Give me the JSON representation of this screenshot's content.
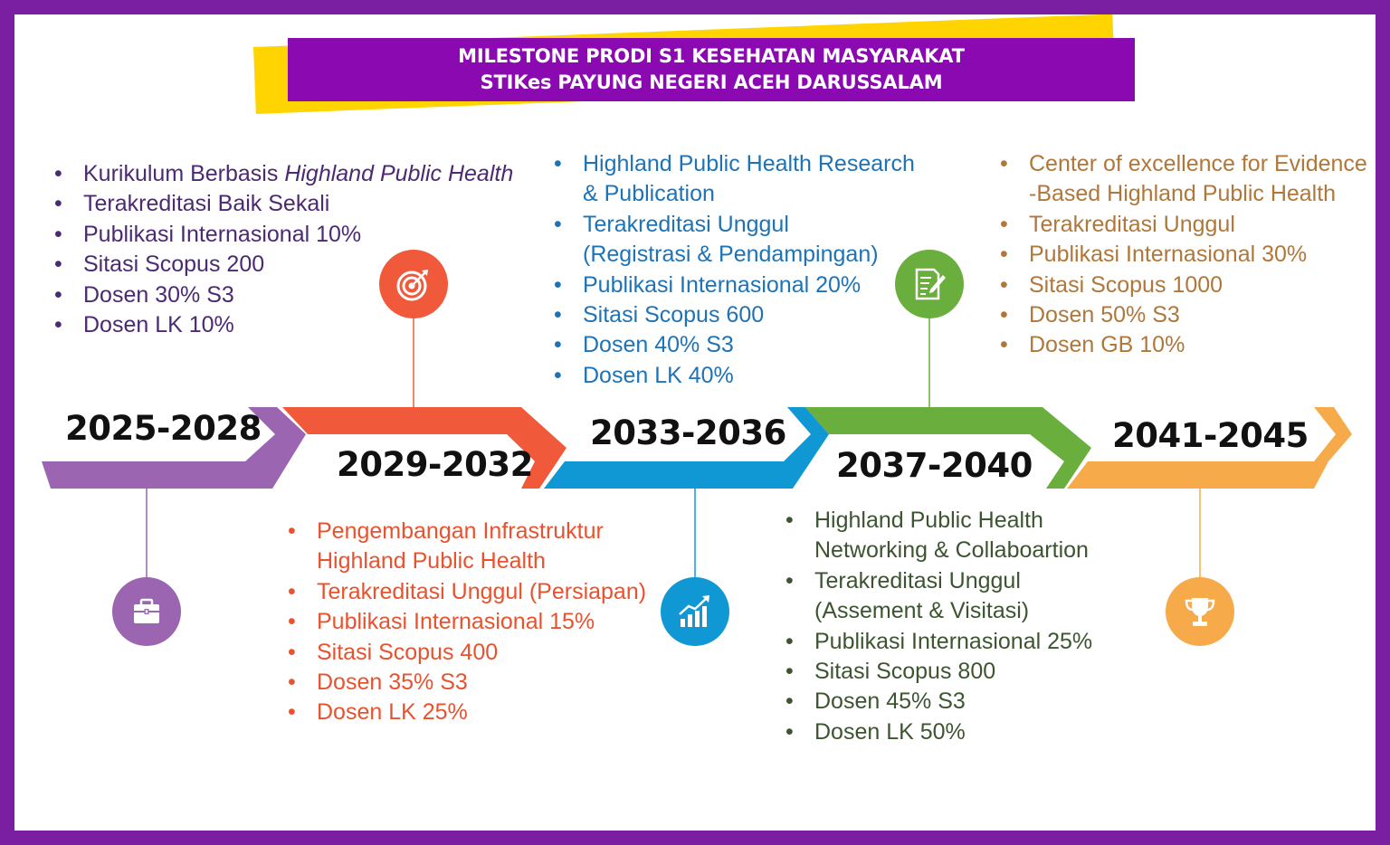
{
  "title": {
    "line1": "MILESTONE PRODI S1 KESEHATAN MASYARAKAT",
    "line2": "STIKes PAYUNG NEGERI ACEH DARUSSALAM"
  },
  "colors": {
    "frame": "#7A1FA2",
    "banner": "#8A09B0",
    "banner_stripe": "#FFD400",
    "phase1": "#9B65B1",
    "phase2": "#F05A3A",
    "phase3": "#1098D4",
    "phase4": "#6AAE3E",
    "phase5": "#F7AA4A"
  },
  "phases": [
    {
      "years": "2025-2028",
      "icon": "briefcase-icon",
      "text_color": "#4B2A73",
      "items": [
        {
          "text": "Kurikulum Berbasis ",
          "em": "Highland Public Health"
        },
        {
          "text": "Terakreditasi Baik Sekali"
        },
        {
          "text": "Publikasi Internasional 10%"
        },
        {
          "text": "Sitasi Scopus 200"
        },
        {
          "text": "Dosen 30% S3"
        },
        {
          "text": "Dosen LK 10%"
        }
      ]
    },
    {
      "years": "2029-2032",
      "icon": "target-icon",
      "text_color": "#E8522E",
      "items": [
        {
          "text": "Pengembangan Infrastruktur\nHighland Public Health"
        },
        {
          "text": "Terakreditasi Unggul (Persiapan)"
        },
        {
          "text": "Publikasi Internasional 15%"
        },
        {
          "text": "Sitasi Scopus 400"
        },
        {
          "text": "Dosen 35% S3"
        },
        {
          "text": "Dosen LK 25%"
        }
      ]
    },
    {
      "years": "2033-2036",
      "icon": "growth-chart-icon",
      "text_color": "#1E73B6",
      "items": [
        {
          "text": "Highland Public Health Research\n& Publication"
        },
        {
          "text": "Terakreditasi Unggul\n(Registrasi & Pendampingan)"
        },
        {
          "text": "Publikasi Internasional 20%"
        },
        {
          "text": "Sitasi Scopus 600"
        },
        {
          "text": "Dosen 40% S3"
        },
        {
          "text": "Dosen LK 40%"
        }
      ]
    },
    {
      "years": "2037-2040",
      "icon": "document-pen-icon",
      "text_color": "#3C5530",
      "items": [
        {
          "text": "Highland Public Health\nNetworking & Collaboartion"
        },
        {
          "text": "Terakreditasi Unggul\n(Assement & Visitasi)"
        },
        {
          "text": "Publikasi Internasional 25%"
        },
        {
          "text": "Sitasi Scopus 800"
        },
        {
          "text": "Dosen 45% S3"
        },
        {
          "text": "Dosen LK 50%"
        }
      ]
    },
    {
      "years": "2041-2045",
      "icon": "trophy-icon",
      "text_color": "#B0773A",
      "items": [
        {
          "text": "Center of excellence for Evidence\n-Based Highland Public Health"
        },
        {
          "text": "Terakreditasi Unggul"
        },
        {
          "text": "Publikasi Internasional 30%"
        },
        {
          "text": "Sitasi Scopus 1000"
        },
        {
          "text": "Dosen 50% S3"
        },
        {
          "text": "Dosen GB 10%"
        }
      ]
    }
  ]
}
